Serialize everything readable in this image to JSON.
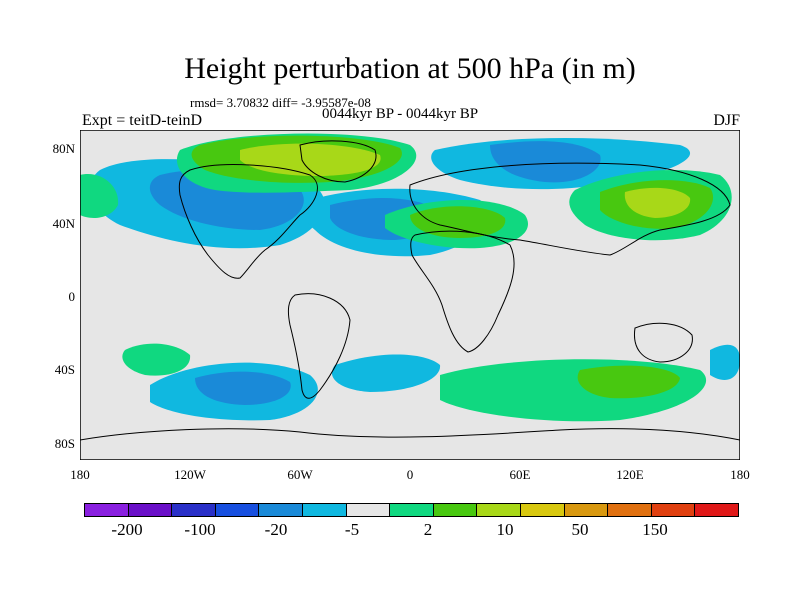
{
  "title": "Height perturbation at 500 hPa (in m)",
  "stats": "rmsd= 3.70832 diff= -3.95587e-08",
  "period": "0044kyr BP - 0044kyr BP",
  "left_label": "Expt = teitD-teinD",
  "right_label": "DJF",
  "lat_labels": [
    "80N",
    "40N",
    "0",
    "40S",
    "80S"
  ],
  "lon_labels": [
    "180",
    "120W",
    "60W",
    "0",
    "60E",
    "120E",
    "180"
  ],
  "colorbar": {
    "colors": [
      "#8a20e0",
      "#6a10c8",
      "#2a30c8",
      "#1850e0",
      "#1a8ad8",
      "#10b8e0",
      "#e6e6e6",
      "#10d880",
      "#48c810",
      "#a8d818",
      "#d8c810",
      "#d89810",
      "#e07010",
      "#e04010",
      "#e01818"
    ],
    "labels": [
      "-200",
      "-100",
      "-20",
      "-5",
      "2",
      "10",
      "50",
      "150"
    ]
  },
  "map": {
    "background_color": "#e6e6e6",
    "regions": [
      {
        "level": "-5",
        "color": "#10b8e0",
        "name": "north-pacific-blue"
      },
      {
        "level": "-20",
        "color": "#1a8ad8",
        "name": "north-america-low"
      },
      {
        "level": "-5",
        "color": "#10b8e0",
        "name": "north-atlantic-blue"
      },
      {
        "level": "-20",
        "color": "#1a8ad8",
        "name": "atlantic-low"
      },
      {
        "level": "-5",
        "color": "#10b8e0",
        "name": "siberia-blue"
      },
      {
        "level": "-20",
        "color": "#1a8ad8",
        "name": "siberia-low"
      },
      {
        "level": "2",
        "color": "#10d880",
        "name": "greenland-high-outer"
      },
      {
        "level": "10",
        "color": "#48c810",
        "name": "greenland-high-mid"
      },
      {
        "level": "50",
        "color": "#a8d818",
        "name": "greenland-high-core"
      },
      {
        "level": "2",
        "color": "#10d880",
        "name": "europe-high"
      },
      {
        "level": "10",
        "color": "#48c810",
        "name": "europe-high-core"
      },
      {
        "level": "2",
        "color": "#10d880",
        "name": "east-asia-high"
      },
      {
        "level": "10",
        "color": "#48c810",
        "name": "east-asia-high-mid"
      },
      {
        "level": "50",
        "color": "#a8d818",
        "name": "east-asia-high-core"
      },
      {
        "level": "2",
        "color": "#10d880",
        "name": "north-pacific-west-high"
      },
      {
        "level": "-5",
        "color": "#10b8e0",
        "name": "south-pacific-low"
      },
      {
        "level": "-20",
        "color": "#1a8ad8",
        "name": "south-pacific-low-core"
      },
      {
        "level": "2",
        "color": "#10d880",
        "name": "south-indian-high"
      },
      {
        "level": "10",
        "color": "#48c810",
        "name": "south-indian-high-core"
      },
      {
        "level": "2",
        "color": "#10d880",
        "name": "south-pacific-high"
      },
      {
        "level": "-5",
        "color": "#10b8e0",
        "name": "south-atlantic-low"
      }
    ]
  }
}
